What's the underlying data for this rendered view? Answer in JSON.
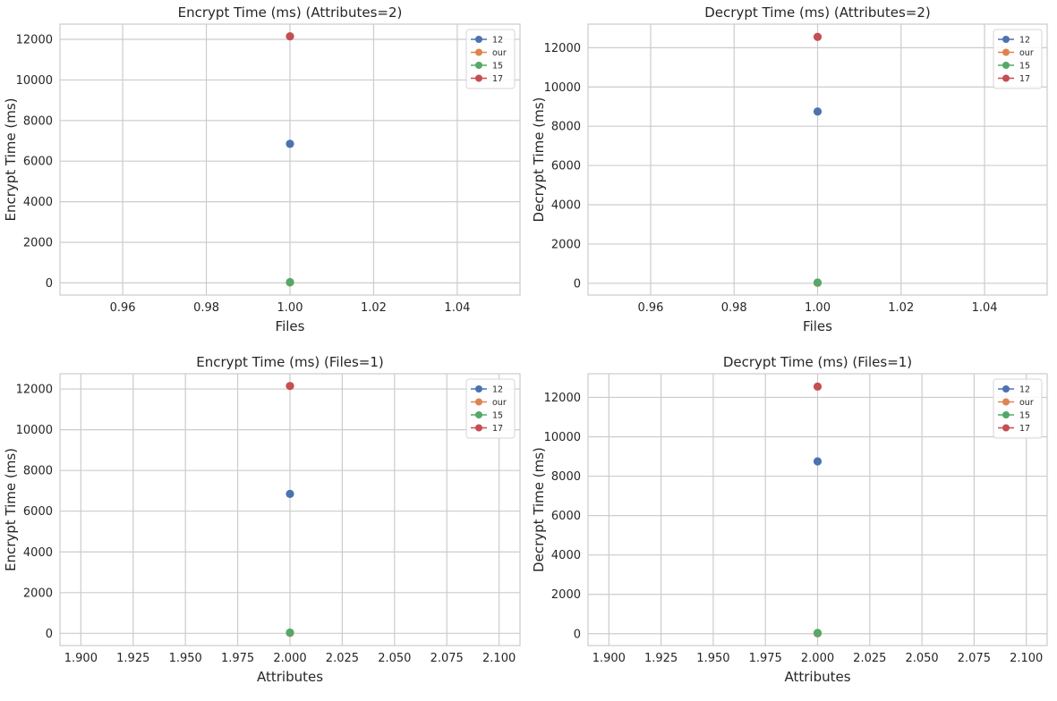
{
  "colors": {
    "12": "#4c72b0",
    "our": "#dd8452",
    "15": "#55a868",
    "17": "#c44e52"
  },
  "chart_data": [
    {
      "type": "line",
      "title": "Encrypt Time (ms) (Attributes=2)",
      "xlabel": "Files",
      "ylabel": "Encrypt Time (ms)",
      "xlim": [
        0.945,
        1.055
      ],
      "ylim": [
        -600,
        12750
      ],
      "xticks": [
        0.96,
        0.98,
        1.0,
        1.02,
        1.04
      ],
      "xtick_labels": [
        "0.96",
        "0.98",
        "1.00",
        "1.02",
        "1.04"
      ],
      "yticks": [
        0,
        2000,
        4000,
        6000,
        8000,
        10000,
        12000
      ],
      "ytick_labels": [
        "0",
        "2000",
        "4000",
        "6000",
        "8000",
        "10000",
        "12000"
      ],
      "grid": true,
      "legend_position": "top-right",
      "series": [
        {
          "name": "12",
          "x": [
            1.0
          ],
          "y": [
            6850
          ]
        },
        {
          "name": "our",
          "x": [
            1.0
          ],
          "y": [
            20
          ]
        },
        {
          "name": "15",
          "x": [
            1.0
          ],
          "y": [
            40
          ]
        },
        {
          "name": "17",
          "x": [
            1.0
          ],
          "y": [
            12150
          ]
        }
      ]
    },
    {
      "type": "line",
      "title": "Decrypt Time (ms) (Attributes=2)",
      "xlabel": "Files",
      "ylabel": "Decrypt Time (ms)",
      "xlim": [
        0.945,
        1.055
      ],
      "ylim": [
        -600,
        13200
      ],
      "xticks": [
        0.96,
        0.98,
        1.0,
        1.02,
        1.04
      ],
      "xtick_labels": [
        "0.96",
        "0.98",
        "1.00",
        "1.02",
        "1.04"
      ],
      "yticks": [
        0,
        2000,
        4000,
        6000,
        8000,
        10000,
        12000
      ],
      "ytick_labels": [
        "0",
        "2000",
        "4000",
        "6000",
        "8000",
        "10000",
        "12000"
      ],
      "grid": true,
      "legend_position": "top-right",
      "series": [
        {
          "name": "12",
          "x": [
            1.0
          ],
          "y": [
            8750
          ]
        },
        {
          "name": "our",
          "x": [
            1.0
          ],
          "y": [
            20
          ]
        },
        {
          "name": "15",
          "x": [
            1.0
          ],
          "y": [
            40
          ]
        },
        {
          "name": "17",
          "x": [
            1.0
          ],
          "y": [
            12550
          ]
        }
      ]
    },
    {
      "type": "line",
      "title": "Encrypt Time (ms) (Files=1)",
      "xlabel": "Attributes",
      "ylabel": "Encrypt Time (ms)",
      "xlim": [
        1.89,
        2.11
      ],
      "ylim": [
        -600,
        12750
      ],
      "xticks": [
        1.9,
        1.925,
        1.95,
        1.975,
        2.0,
        2.025,
        2.05,
        2.075,
        2.1
      ],
      "xtick_labels": [
        "1.900",
        "1.925",
        "1.950",
        "1.975",
        "2.000",
        "2.025",
        "2.050",
        "2.075",
        "2.100"
      ],
      "yticks": [
        0,
        2000,
        4000,
        6000,
        8000,
        10000,
        12000
      ],
      "ytick_labels": [
        "0",
        "2000",
        "4000",
        "6000",
        "8000",
        "10000",
        "12000"
      ],
      "grid": true,
      "legend_position": "top-right",
      "series": [
        {
          "name": "12",
          "x": [
            2.0
          ],
          "y": [
            6850
          ]
        },
        {
          "name": "our",
          "x": [
            2.0
          ],
          "y": [
            20
          ]
        },
        {
          "name": "15",
          "x": [
            2.0
          ],
          "y": [
            40
          ]
        },
        {
          "name": "17",
          "x": [
            2.0
          ],
          "y": [
            12150
          ]
        }
      ]
    },
    {
      "type": "line",
      "title": "Decrypt Time (ms) (Files=1)",
      "xlabel": "Attributes",
      "ylabel": "Decrypt Time (ms)",
      "xlim": [
        1.89,
        2.11
      ],
      "ylim": [
        -600,
        13200
      ],
      "xticks": [
        1.9,
        1.925,
        1.95,
        1.975,
        2.0,
        2.025,
        2.05,
        2.075,
        2.1
      ],
      "xtick_labels": [
        "1.900",
        "1.925",
        "1.950",
        "1.975",
        "2.000",
        "2.025",
        "2.050",
        "2.075",
        "2.100"
      ],
      "yticks": [
        0,
        2000,
        4000,
        6000,
        8000,
        10000,
        12000
      ],
      "ytick_labels": [
        "0",
        "2000",
        "4000",
        "6000",
        "8000",
        "10000",
        "12000"
      ],
      "grid": true,
      "legend_position": "top-right",
      "series": [
        {
          "name": "12",
          "x": [
            2.0
          ],
          "y": [
            8750
          ]
        },
        {
          "name": "our",
          "x": [
            2.0
          ],
          "y": [
            20
          ]
        },
        {
          "name": "15",
          "x": [
            2.0
          ],
          "y": [
            40
          ]
        },
        {
          "name": "17",
          "x": [
            2.0
          ],
          "y": [
            12550
          ]
        }
      ]
    }
  ]
}
